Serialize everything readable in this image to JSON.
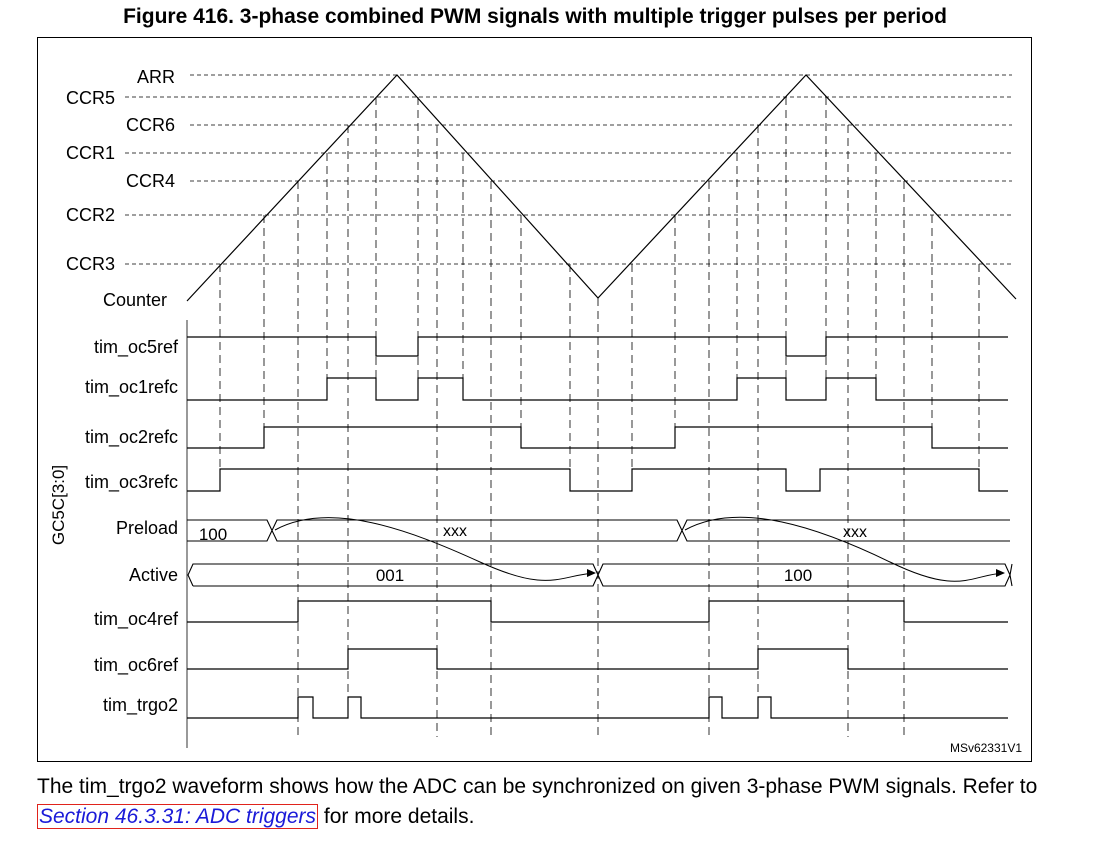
{
  "figure": {
    "title": "Figure 416. 3-phase combined PWM signals with multiple trigger pulses per period",
    "reference_id": "MSv62331V1",
    "group_label": "GC5C[3:0]"
  },
  "levels": {
    "ARR": "ARR",
    "CCR5": "CCR5",
    "CCR6": "CCR6",
    "CCR1": "CCR1",
    "CCR4": "CCR4",
    "CCR2": "CCR2",
    "CCR3": "CCR3"
  },
  "signals": {
    "counter": "Counter",
    "oc5ref": "tim_oc5ref",
    "oc1refc": "tim_oc1refc",
    "oc2refc": "tim_oc2refc",
    "oc3refc": "tim_oc3refc",
    "preload": "Preload",
    "active": "Active",
    "oc4ref": "tim_oc4ref",
    "oc6ref": "tim_oc6ref",
    "trgo2": "tim_trgo2"
  },
  "bus_values": {
    "preload_initial": "100",
    "preload_period1": "xxx",
    "preload_period2": "xxx",
    "active_period1": "001",
    "active_period2": "100"
  },
  "caption": {
    "text_before": "The tim_trgo2 waveform shows how the ADC can be synchronized on given 3-phase PWM signals. Refer to ",
    "link_text": "Section 46.3.31: ADC triggers",
    "text_after": " for more details."
  }
}
